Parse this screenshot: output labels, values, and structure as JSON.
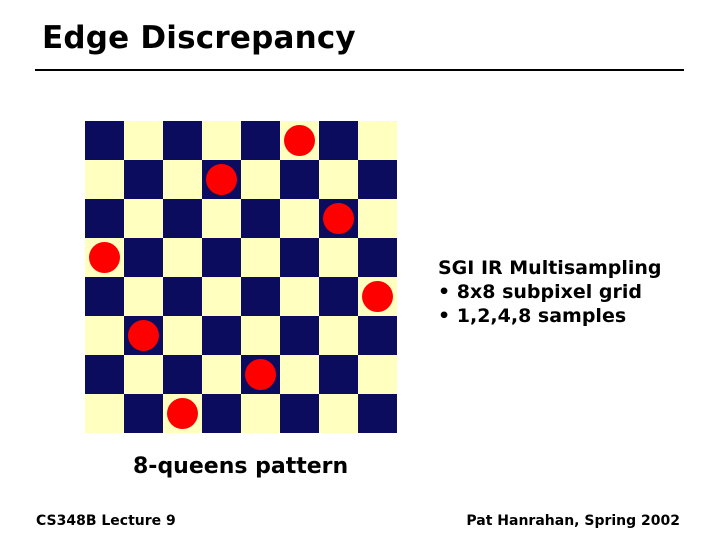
{
  "slide": {
    "title": "Edge Discrepancy",
    "caption": "8-queens pattern",
    "notes": [
      "SGI IR Multisampling",
      "• 8x8 subpixel grid",
      "• 1,2,4,8 samples"
    ],
    "footer_left": "CS348B Lecture 9",
    "footer_right": "Pat Hanrahan, Spring 2002"
  },
  "board": {
    "size": 8,
    "dark_color": "#0c0c5e",
    "light_color": "#ffffc0",
    "queen_color": "#ff0000",
    "queen_columns_by_row": [
      5,
      3,
      6,
      0,
      7,
      1,
      4,
      2
    ]
  }
}
